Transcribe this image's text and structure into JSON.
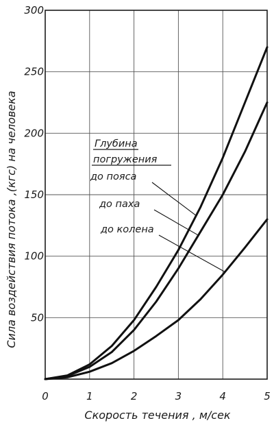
{
  "chart_data": {
    "type": "line",
    "xlabel": "Скорость течения , м/сек",
    "ylabel": "Сила воздействия потока ,(кгс) на человека",
    "xlim": [
      0,
      5
    ],
    "ylim": [
      0,
      300
    ],
    "xticks": [
      "0",
      "1",
      "2",
      "3",
      "4",
      "5"
    ],
    "yticks": [
      "50",
      "100",
      "150",
      "200",
      "250",
      "300"
    ],
    "grid": true,
    "legend": {
      "title_line1": "Глубина",
      "title_line2": "погружения"
    },
    "series": [
      {
        "name": "до пояса",
        "x": [
          0,
          0.5,
          1,
          1.5,
          2,
          2.5,
          3,
          3.5,
          4,
          4.5,
          5
        ],
        "y": [
          0,
          3,
          12,
          27,
          48,
          75,
          105,
          140,
          180,
          225,
          270
        ]
      },
      {
        "name": "до паха",
        "x": [
          0,
          0.5,
          1,
          1.5,
          2,
          2.5,
          3,
          3.5,
          4,
          4.5,
          5
        ],
        "y": [
          0,
          2.5,
          10,
          22,
          40,
          63,
          90,
          120,
          150,
          185,
          225
        ]
      },
      {
        "name": "до колена",
        "x": [
          0,
          0.5,
          1,
          1.5,
          2,
          2.5,
          3,
          3.5,
          4,
          4.5,
          5
        ],
        "y": [
          0,
          1.5,
          6,
          13,
          23,
          35,
          48,
          65,
          85,
          107,
          130
        ]
      }
    ]
  }
}
